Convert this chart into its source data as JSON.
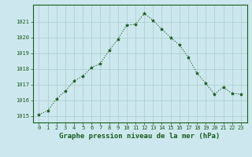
{
  "x": [
    0,
    1,
    2,
    3,
    4,
    5,
    6,
    7,
    8,
    9,
    10,
    11,
    12,
    13,
    14,
    15,
    16,
    17,
    18,
    19,
    20,
    21,
    22,
    23
  ],
  "y": [
    1015.1,
    1015.35,
    1016.1,
    1016.6,
    1017.25,
    1017.55,
    1018.1,
    1018.35,
    1019.2,
    1019.9,
    1020.8,
    1020.85,
    1021.55,
    1021.1,
    1020.55,
    1020.0,
    1019.55,
    1018.75,
    1017.75,
    1017.1,
    1016.4,
    1016.85,
    1016.45,
    1016.4
  ],
  "line_color": "#1a5c1a",
  "marker": "*",
  "marker_color": "#1a5c1a",
  "background_color": "#cce8ee",
  "grid_color": "#aacccc",
  "xlabel": "Graphe pression niveau de la mer (hPa)",
  "xlabel_color": "#1a5c1a",
  "tick_label_color": "#1a5c1a",
  "ylim": [
    1014.6,
    1022.1
  ],
  "yticks": [
    1015,
    1016,
    1017,
    1018,
    1019,
    1020,
    1021
  ],
  "xticks": [
    0,
    1,
    2,
    3,
    4,
    5,
    6,
    7,
    8,
    9,
    10,
    11,
    12,
    13,
    14,
    15,
    16,
    17,
    18,
    19,
    20,
    21,
    22,
    23
  ],
  "spine_color": "#1a5c1a",
  "linewidth": 0.8,
  "markersize": 3.0,
  "tick_fontsize": 5.0,
  "xlabel_fontsize": 6.5
}
